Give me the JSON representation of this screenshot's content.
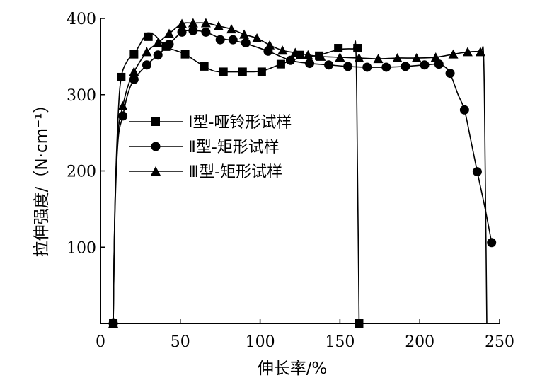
{
  "chart_data": {
    "type": "line",
    "xlabel": "伸长率/%",
    "ylabel": "拉伸强度/（N·cm⁻¹）",
    "xlim": [
      0,
      250
    ],
    "ylim": [
      0,
      400
    ],
    "xticks": [
      0,
      50,
      100,
      150,
      200,
      250
    ],
    "yticks": [
      100,
      200,
      300,
      400
    ],
    "grid": false,
    "legend_position": "center-left",
    "series": [
      {
        "name": "Ⅰ型-哑铃形试样",
        "marker": "square",
        "points": [
          [
            8,
            0
          ],
          [
            13,
            323
          ],
          [
            21,
            353
          ],
          [
            30,
            376
          ],
          [
            41,
            363
          ],
          [
            53,
            353
          ],
          [
            65,
            337
          ],
          [
            77,
            330
          ],
          [
            89,
            330
          ],
          [
            101,
            330
          ],
          [
            113,
            340
          ],
          [
            125,
            352
          ],
          [
            137,
            351
          ],
          [
            149,
            361
          ],
          [
            161,
            361
          ],
          [
            162,
            0
          ]
        ],
        "curve": [
          [
            8,
            0
          ],
          [
            9,
            150
          ],
          [
            11,
            270
          ],
          [
            13,
            323
          ],
          [
            17,
            345
          ],
          [
            21,
            353
          ],
          [
            25,
            367
          ],
          [
            28,
            378
          ],
          [
            30,
            381
          ],
          [
            34,
            378
          ],
          [
            41,
            363
          ],
          [
            47,
            358
          ],
          [
            53,
            353
          ],
          [
            59,
            345
          ],
          [
            65,
            337
          ],
          [
            71,
            331
          ],
          [
            77,
            330
          ],
          [
            89,
            330
          ],
          [
            101,
            331
          ],
          [
            113,
            340
          ],
          [
            125,
            348
          ],
          [
            137,
            352
          ],
          [
            149,
            359
          ],
          [
            158,
            360
          ],
          [
            160,
            358
          ],
          [
            161,
            200
          ],
          [
            162,
            0
          ]
        ]
      },
      {
        "name": "Ⅱ型-矩形试样",
        "marker": "circle",
        "points": [
          [
            8,
            0
          ],
          [
            14,
            272
          ],
          [
            21,
            320
          ],
          [
            29,
            339
          ],
          [
            36,
            352
          ],
          [
            43,
            366
          ],
          [
            51,
            382
          ],
          [
            58,
            384
          ],
          [
            66,
            382
          ],
          [
            75,
            372
          ],
          [
            83,
            372
          ],
          [
            91,
            368
          ],
          [
            105,
            357
          ],
          [
            119,
            345
          ],
          [
            131,
            341
          ],
          [
            143,
            339
          ],
          [
            155,
            337
          ],
          [
            167,
            336
          ],
          [
            179,
            336
          ],
          [
            191,
            337
          ],
          [
            203,
            339
          ],
          [
            212,
            340
          ],
          [
            219,
            328
          ],
          [
            228,
            280
          ],
          [
            236,
            199
          ],
          [
            245,
            106
          ]
        ],
        "curve": [
          [
            8,
            0
          ],
          [
            9,
            140
          ],
          [
            11,
            240
          ],
          [
            14,
            272
          ],
          [
            17,
            300
          ],
          [
            21,
            320
          ],
          [
            29,
            339
          ],
          [
            36,
            352
          ],
          [
            43,
            366
          ],
          [
            51,
            382
          ],
          [
            58,
            384
          ],
          [
            66,
            382
          ],
          [
            75,
            374
          ],
          [
            83,
            371
          ],
          [
            91,
            367
          ],
          [
            105,
            357
          ],
          [
            119,
            345
          ],
          [
            131,
            341
          ],
          [
            143,
            339
          ],
          [
            155,
            337
          ],
          [
            167,
            336
          ],
          [
            179,
            336
          ],
          [
            191,
            337
          ],
          [
            203,
            339
          ],
          [
            212,
            340
          ],
          [
            216,
            336
          ],
          [
            219,
            328
          ],
          [
            224,
            300
          ],
          [
            228,
            280
          ],
          [
            232,
            240
          ],
          [
            236,
            199
          ],
          [
            241,
            150
          ],
          [
            245,
            106
          ]
        ]
      },
      {
        "name": "Ⅲ型-矩形试样",
        "marker": "triangle",
        "points": [
          [
            8,
            0
          ],
          [
            14,
            285
          ],
          [
            21,
            330
          ],
          [
            29,
            356
          ],
          [
            36,
            368
          ],
          [
            43,
            380
          ],
          [
            51,
            393
          ],
          [
            58,
            394
          ],
          [
            66,
            394
          ],
          [
            74,
            390
          ],
          [
            82,
            386
          ],
          [
            90,
            379
          ],
          [
            98,
            374
          ],
          [
            106,
            365
          ],
          [
            114,
            358
          ],
          [
            122,
            355
          ],
          [
            130,
            352
          ],
          [
            138,
            350
          ],
          [
            150,
            349
          ],
          [
            162,
            348
          ],
          [
            174,
            347
          ],
          [
            186,
            348
          ],
          [
            198,
            348
          ],
          [
            210,
            349
          ],
          [
            221,
            353
          ],
          [
            230,
            356
          ],
          [
            238,
            356
          ]
        ],
        "curve": [
          [
            8,
            0
          ],
          [
            9,
            150
          ],
          [
            11,
            250
          ],
          [
            14,
            285
          ],
          [
            17,
            310
          ],
          [
            21,
            330
          ],
          [
            29,
            356
          ],
          [
            36,
            368
          ],
          [
            43,
            380
          ],
          [
            51,
            393
          ],
          [
            58,
            394
          ],
          [
            66,
            394
          ],
          [
            74,
            390
          ],
          [
            82,
            386
          ],
          [
            90,
            379
          ],
          [
            98,
            374
          ],
          [
            106,
            365
          ],
          [
            114,
            358
          ],
          [
            122,
            355
          ],
          [
            130,
            352
          ],
          [
            138,
            350
          ],
          [
            150,
            349
          ],
          [
            162,
            348
          ],
          [
            174,
            347
          ],
          [
            186,
            348
          ],
          [
            198,
            348
          ],
          [
            210,
            349
          ],
          [
            221,
            353
          ],
          [
            230,
            356
          ],
          [
            238,
            356
          ],
          [
            240,
            350
          ],
          [
            241,
            200
          ],
          [
            242,
            0
          ]
        ]
      }
    ]
  }
}
